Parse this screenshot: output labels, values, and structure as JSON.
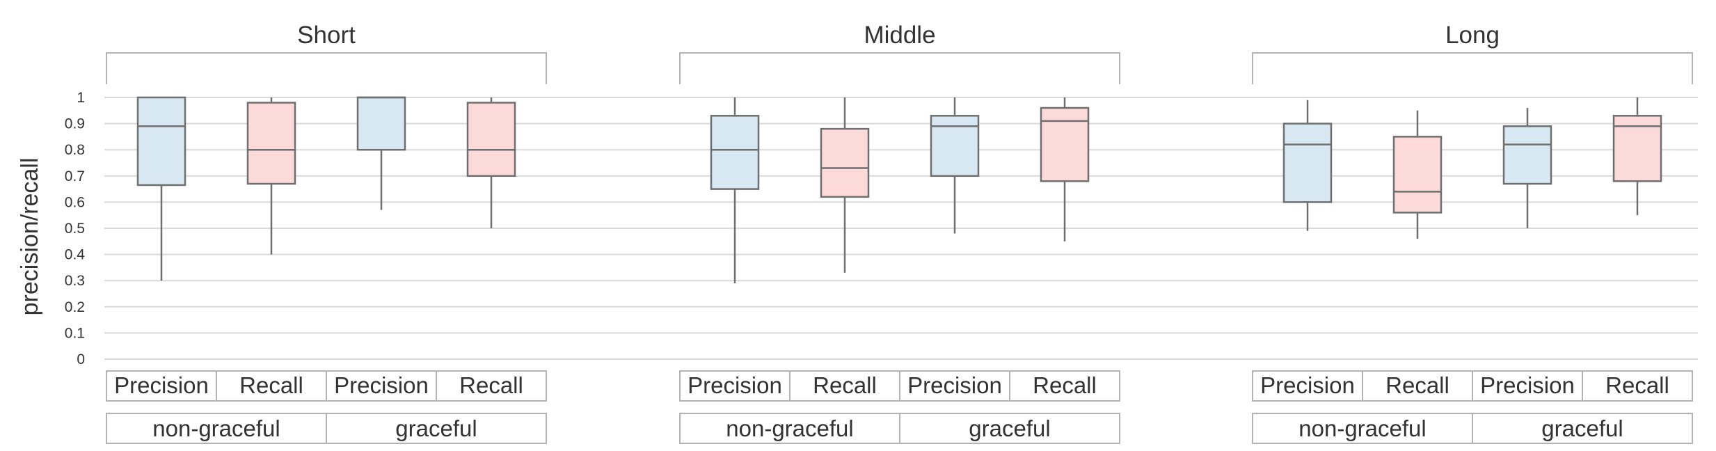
{
  "chart_data": {
    "type": "box",
    "ylabel": "precision/recall",
    "ylim": [
      0,
      1
    ],
    "yticks": [
      "0",
      "0.1",
      "0.2",
      "0.3",
      "0.4",
      "0.5",
      "0.6",
      "0.7",
      "0.8",
      "0.9",
      "1"
    ],
    "grid": "horizontal",
    "colors": {
      "precision": "#d7e8f3",
      "recall": "#fcdada",
      "stroke": "#6f6f6f",
      "grid": "#d9d9d9"
    },
    "groups": [
      {
        "title": "Short",
        "subgroups": [
          "non-graceful",
          "graceful"
        ],
        "boxes": [
          {
            "label": "Precision",
            "subgroup": "non-graceful",
            "metric": "precision",
            "min": 0.3,
            "q1": 0.665,
            "median": 0.89,
            "q3": 1.0,
            "max": 1.0
          },
          {
            "label": "Recall",
            "subgroup": "non-graceful",
            "metric": "recall",
            "min": 0.4,
            "q1": 0.67,
            "median": 0.8,
            "q3": 0.98,
            "max": 1.0
          },
          {
            "label": "Precision",
            "subgroup": "graceful",
            "metric": "precision",
            "min": 0.57,
            "q1": 0.8,
            "median": 1.0,
            "q3": 1.0,
            "max": 1.0
          },
          {
            "label": "Recall",
            "subgroup": "graceful",
            "metric": "recall",
            "min": 0.5,
            "q1": 0.7,
            "median": 0.8,
            "q3": 0.98,
            "max": 1.0
          }
        ]
      },
      {
        "title": "Middle",
        "subgroups": [
          "non-graceful",
          "graceful"
        ],
        "boxes": [
          {
            "label": "Precision",
            "subgroup": "non-graceful",
            "metric": "precision",
            "min": 0.29,
            "q1": 0.65,
            "median": 0.8,
            "q3": 0.93,
            "max": 1.0
          },
          {
            "label": "Recall",
            "subgroup": "non-graceful",
            "metric": "recall",
            "min": 0.33,
            "q1": 0.62,
            "median": 0.73,
            "q3": 0.88,
            "max": 1.0
          },
          {
            "label": "Precision",
            "subgroup": "graceful",
            "metric": "precision",
            "min": 0.48,
            "q1": 0.7,
            "median": 0.89,
            "q3": 0.93,
            "max": 1.0
          },
          {
            "label": "Recall",
            "subgroup": "graceful",
            "metric": "recall",
            "min": 0.45,
            "q1": 0.68,
            "median": 0.91,
            "q3": 0.96,
            "max": 1.0
          }
        ]
      },
      {
        "title": "Long",
        "subgroups": [
          "non-graceful",
          "graceful"
        ],
        "boxes": [
          {
            "label": "Precision",
            "subgroup": "non-graceful",
            "metric": "precision",
            "min": 0.49,
            "q1": 0.6,
            "median": 0.82,
            "q3": 0.9,
            "max": 0.99
          },
          {
            "label": "Recall",
            "subgroup": "non-graceful",
            "metric": "recall",
            "min": 0.46,
            "q1": 0.56,
            "median": 0.64,
            "q3": 0.85,
            "max": 0.95
          },
          {
            "label": "Precision",
            "subgroup": "graceful",
            "metric": "precision",
            "min": 0.5,
            "q1": 0.67,
            "median": 0.82,
            "q3": 0.89,
            "max": 0.96
          },
          {
            "label": "Recall",
            "subgroup": "graceful",
            "metric": "recall",
            "min": 0.55,
            "q1": 0.68,
            "median": 0.89,
            "q3": 0.93,
            "max": 1.0
          }
        ]
      }
    ]
  }
}
